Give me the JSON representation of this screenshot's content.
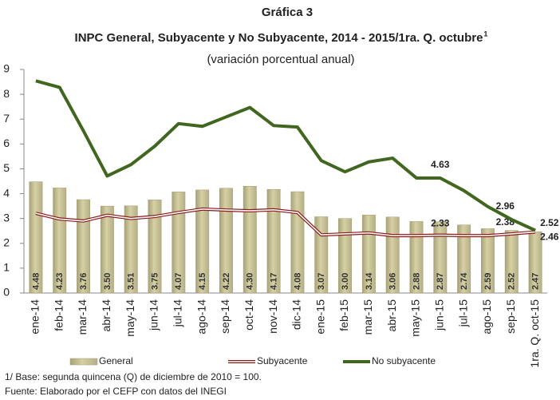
{
  "chart_data": {
    "type": "bar-line",
    "title": "Gráfica 3",
    "subtitle_main": "INPC General, Subyacente y No Subyacente, 2014 - 2015/1ra. Q. octubre",
    "subtitle_sup": "1",
    "subtitle": "(variación porcentual anual)",
    "categories": [
      "ene-14",
      "feb-14",
      "mar-14",
      "abr-14",
      "may-14",
      "jun-14",
      "jul-14",
      "ago-14",
      "sep-14",
      "oct-14",
      "nov-14",
      "dic-14",
      "ene-15",
      "feb-15",
      "mar-15",
      "abr-15",
      "may-15",
      "jun-15",
      "jul-15",
      "ago-15",
      "sep-15",
      "1ra. Q. oct-15"
    ],
    "series": [
      {
        "name": "General",
        "kind": "bar",
        "color": "#d6d0a4",
        "values": [
          4.48,
          4.23,
          3.76,
          3.5,
          3.51,
          3.75,
          4.07,
          4.15,
          4.22,
          4.3,
          4.17,
          4.08,
          3.07,
          3.0,
          3.14,
          3.06,
          2.88,
          2.87,
          2.74,
          2.59,
          2.52,
          2.47
        ],
        "value_labels": [
          "4.48",
          "4.23",
          "3.76",
          "3.50",
          "3.51",
          "3.75",
          "4.07",
          "4.15",
          "4.22",
          "4.30",
          "4.17",
          "4.08",
          "3.07",
          "3.00",
          "3.14",
          "3.06",
          "2.88",
          "2.87",
          "2.74",
          "2.59",
          "2.52",
          "2.47"
        ]
      },
      {
        "name": "Subyacente",
        "kind": "line",
        "color": "#8b1a1a",
        "values": [
          3.21,
          2.98,
          2.9,
          3.13,
          3.0,
          3.08,
          3.24,
          3.38,
          3.34,
          3.31,
          3.35,
          3.24,
          2.34,
          2.38,
          2.42,
          2.31,
          2.31,
          2.33,
          2.31,
          2.31,
          2.38,
          2.46
        ],
        "value_labels": [
          null,
          null,
          null,
          null,
          null,
          null,
          null,
          null,
          null,
          null,
          null,
          null,
          null,
          null,
          null,
          null,
          null,
          "2.33",
          null,
          null,
          "2.38",
          "2.46"
        ]
      },
      {
        "name": "No subyacente",
        "kind": "line",
        "color": "#41661f",
        "values": [
          8.54,
          8.28,
          6.53,
          4.71,
          5.17,
          5.91,
          6.82,
          6.71,
          7.09,
          7.47,
          6.74,
          6.68,
          5.33,
          4.88,
          5.28,
          5.43,
          4.63,
          4.63,
          4.12,
          3.48,
          2.96,
          2.52
        ],
        "value_labels": [
          null,
          null,
          null,
          null,
          null,
          null,
          null,
          null,
          null,
          null,
          null,
          null,
          null,
          null,
          null,
          null,
          null,
          "4.63",
          null,
          null,
          "2.96",
          "2.52"
        ]
      }
    ],
    "ylim": [
      0,
      9
    ],
    "yticks": [
      0,
      1,
      2,
      3,
      4,
      5,
      6,
      7,
      8,
      9
    ],
    "grid": false,
    "notes": [
      "1/ Base: segunda quincena (Q) de diciembre de 2010 = 100.",
      "Fuente: Elaborado por el CEFP con  datos del INEGI"
    ]
  }
}
